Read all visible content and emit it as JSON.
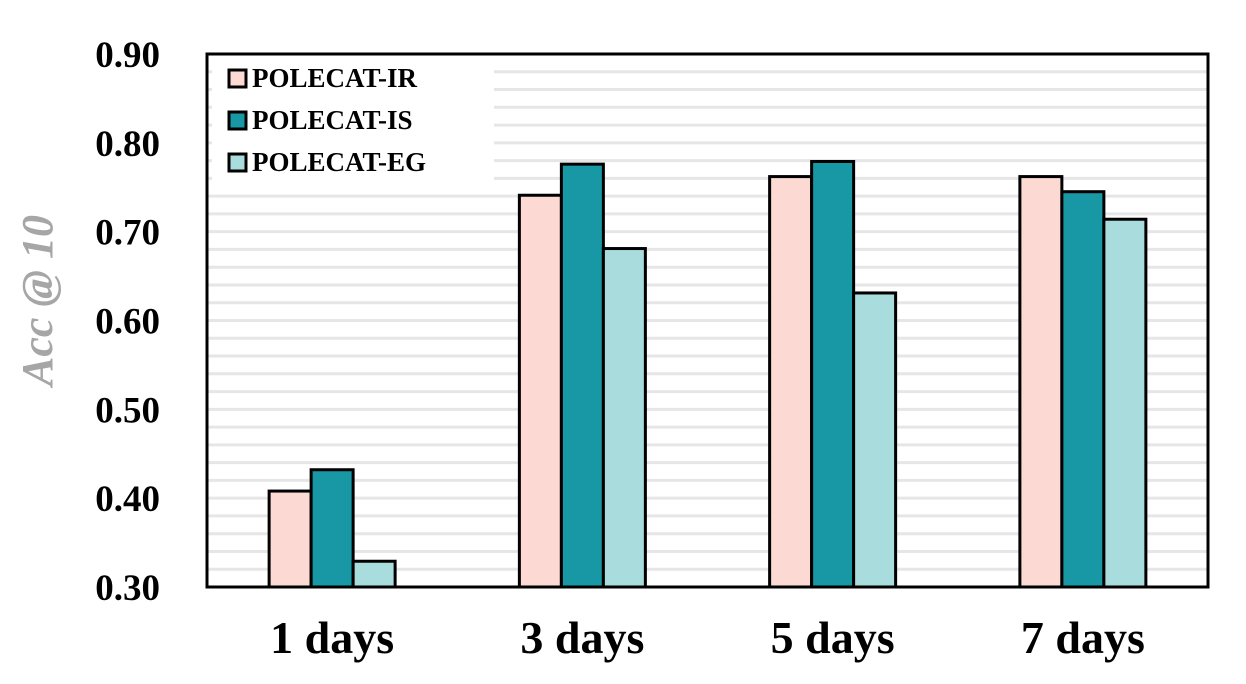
{
  "chart_data": {
    "type": "bar",
    "title": "",
    "xlabel": "",
    "ylabel": "Acc @ 10",
    "categories": [
      "1 days",
      "3 days",
      "5 days",
      "7 days"
    ],
    "series": [
      {
        "name": "POLECAT-IR",
        "color": "#fdd9d4",
        "values": [
          0.408,
          0.741,
          0.762,
          0.762
        ]
      },
      {
        "name": "POLECAT-IS",
        "color": "#1897a5",
        "values": [
          0.432,
          0.776,
          0.779,
          0.745
        ]
      },
      {
        "name": "POLECAT-EG",
        "color": "#a9dcdd",
        "values": [
          0.329,
          0.681,
          0.631,
          0.714
        ]
      }
    ],
    "ylim": [
      0.3,
      0.9
    ],
    "yticks": [
      "0.30",
      "0.40",
      "0.50",
      "0.60",
      "0.70",
      "0.80",
      "0.90"
    ],
    "grid": "horizontal",
    "legend_position": "top-left",
    "colors": {
      "axis": "#000000",
      "grid": "#e6e6e6",
      "ylabel": "#a6a6a6"
    }
  }
}
